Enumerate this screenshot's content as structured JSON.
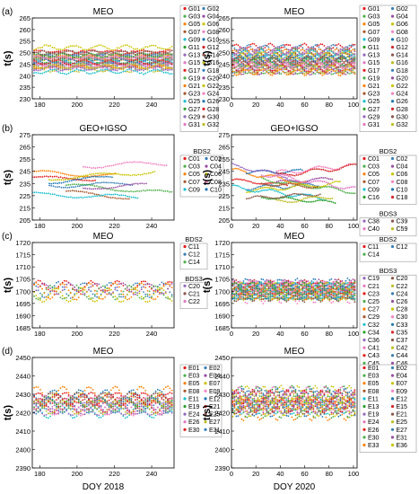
{
  "figure": {
    "ylabel": "t(s)",
    "xlabel_left": "DOY 2018",
    "xlabel_right": "DOY 2020"
  },
  "series_colors": [
    "#e41a1c",
    "#377eb8",
    "#4daf4a",
    "#984ea3",
    "#ff7f00",
    "#c9c400",
    "#a65628",
    "#f781bf",
    "#17becf",
    "#1f77b4",
    "#2ca02c",
    "#d62728",
    "#9467bd",
    "#8c564b",
    "#e377c2",
    "#bcbd22"
  ],
  "chart_data": [
    {
      "panel_label": "(a)",
      "type": "scatter",
      "title": "MEO",
      "xlim": [
        176,
        252
      ],
      "xticks": [
        180,
        200,
        220,
        240
      ],
      "ylim": [
        230,
        265
      ],
      "yticks": [
        230,
        235,
        240,
        245,
        250,
        255,
        260,
        265
      ],
      "legend_groups": [
        {
          "title": "",
          "entries": [
            "G01",
            "G02",
            "G03",
            "G04",
            "G05",
            "G06",
            "G07",
            "G08",
            "G09",
            "G10",
            "G11",
            "G12",
            "G13",
            "G14",
            "G15",
            "G16",
            "G17",
            "G18",
            "G19",
            "G20",
            "G21",
            "G22",
            "G23",
            "G24",
            "G25",
            "G26",
            "G27",
            "G28",
            "G29",
            "G30",
            "G31",
            "G32"
          ]
        }
      ],
      "series_levels": [
        250.5,
        249.5,
        249,
        248.5,
        248,
        247.5,
        247,
        246.5,
        246,
        245.5,
        245,
        244.5,
        244,
        243.5,
        243,
        242.5,
        249.8,
        248.2,
        246.8,
        245.2,
        243.8,
        252.2,
        247.2,
        244.8,
        241.8,
        246.2,
        248.8,
        245.8,
        243.2,
        250,
        247.8,
        244.2
      ],
      "oscillation_amplitude": 1.0,
      "oscillation_period_days": 14
    },
    {
      "panel_label": "",
      "type": "scatter",
      "title": "MEO",
      "xlim": [
        0,
        103
      ],
      "xticks": [
        0,
        20,
        40,
        60,
        80,
        100
      ],
      "ylim": [
        230,
        265
      ],
      "yticks": [
        230,
        235,
        240,
        245,
        250,
        255,
        260,
        265
      ],
      "legend_groups": [
        {
          "title": "",
          "entries": [
            "G01",
            "G02",
            "G03",
            "G04",
            "G05",
            "G06",
            "G07",
            "G08",
            "G09",
            "G10",
            "G11",
            "G12",
            "G13",
            "G14",
            "G15",
            "G16",
            "G17",
            "G18",
            "G19",
            "G20",
            "G21",
            "G22",
            "G23",
            "G24",
            "G25",
            "G26",
            "G27",
            "G28",
            "G29",
            "G30",
            "G31",
            "G32"
          ]
        }
      ],
      "series_levels": [
        252.5,
        251.5,
        250.5,
        250,
        249.5,
        249,
        248.5,
        248,
        247.5,
        247,
        246.5,
        246,
        245.5,
        245,
        244.5,
        244,
        243.5,
        243,
        242.5,
        242,
        241.5,
        248.2,
        246.2,
        244.2,
        249.2,
        247.2,
        245.2,
        243.2,
        250.8,
        246.8,
        244.8,
        242.8
      ],
      "oscillation_amplitude": 2.0,
      "oscillation_period_days": 14
    },
    {
      "panel_label": "(b)",
      "type": "scatter",
      "title": "GEO+IGSO",
      "xlim": [
        176,
        252
      ],
      "xticks": [
        180,
        200,
        220,
        240
      ],
      "ylim": [
        205,
        275
      ],
      "yticks": [
        205,
        215,
        225,
        235,
        245,
        255,
        265,
        275
      ],
      "legend_groups": [
        {
          "title": "BDS2",
          "entries": [
            "C01",
            "C02",
            "C03",
            "C04",
            "C05",
            "C06",
            "C07",
            "C08",
            "C09",
            "C10"
          ]
        }
      ],
      "series_levels": [
        240,
        233,
        236,
        229,
        244,
        238,
        231,
        248,
        226,
        235
      ],
      "series_slopes": [
        -0.05,
        0.03,
        -0.12,
        0.08,
        -0.06,
        0.1,
        -0.15,
        0.05,
        -0.04,
        0.12
      ],
      "oscillation_amplitude": 2.0,
      "oscillation_period_days": 40
    },
    {
      "panel_label": "",
      "type": "scatter",
      "title": "GEO+IGSO",
      "xlim": [
        0,
        103
      ],
      "xticks": [
        0,
        20,
        40,
        60,
        80,
        100
      ],
      "ylim": [
        205,
        275
      ],
      "yticks": [
        205,
        215,
        225,
        235,
        245,
        255,
        265,
        275
      ],
      "legend_groups": [
        {
          "title": "BDS2",
          "entries": [
            "C01",
            "C02",
            "C03",
            "C04",
            "C05",
            "C06",
            "C07",
            "C08",
            "C09",
            "C10",
            "C16",
            "C18"
          ]
        },
        {
          "title": "BDS3",
          "entries": [
            "C38",
            "C39",
            "C40",
            "C59"
          ]
        }
      ],
      "series_levels": [
        238,
        231,
        242,
        234,
        246,
        228,
        236,
        240,
        232,
        244,
        226,
        237,
        250,
        222,
        247,
        216
      ],
      "series_slopes": [
        -0.1,
        0.04,
        -0.14,
        0.06,
        -0.18,
        0.08,
        -0.05,
        0.1,
        -0.12,
        0.02,
        -0.08,
        0.12,
        -0.2,
        0.06,
        -0.16,
        0.1
      ],
      "oscillation_amplitude": 2.0,
      "oscillation_period_days": 30
    },
    {
      "panel_label": "(c)",
      "type": "scatter",
      "title": "MEO",
      "xlim": [
        176,
        252
      ],
      "xticks": [
        180,
        200,
        220,
        240
      ],
      "ylim": [
        1685,
        1720
      ],
      "yticks": [
        1685,
        1690,
        1695,
        1700,
        1705,
        1710,
        1715,
        1720
      ],
      "legend_groups": [
        {
          "title": "BDS2",
          "entries": [
            "C11",
            "C12",
            "C14"
          ]
        },
        {
          "title": "BDS3",
          "entries": [
            "C20",
            "C21",
            "C22"
          ]
        }
      ],
      "series_levels": [
        1702,
        1700.5,
        1699.5,
        1701,
        1700,
        1698.5
      ],
      "oscillation_amplitude": 3.5,
      "oscillation_period_days": 14
    },
    {
      "panel_label": "",
      "type": "scatter",
      "title": "MEO",
      "xlim": [
        0,
        103
      ],
      "xticks": [
        0,
        20,
        40,
        60,
        80,
        100
      ],
      "ylim": [
        1685,
        1720
      ],
      "yticks": [
        1685,
        1690,
        1695,
        1700,
        1705,
        1710,
        1715,
        1720
      ],
      "legend_groups": [
        {
          "title": "BDS2",
          "entries": [
            "C11",
            "C12",
            "C14"
          ]
        },
        {
          "title": "BDS3",
          "entries": [
            "C19",
            "C20",
            "C21",
            "C22",
            "C23",
            "C24",
            "C25",
            "C26",
            "C27",
            "C28",
            "C29",
            "C30",
            "C32",
            "C33",
            "C34",
            "C35",
            "C36",
            "C37",
            "C41",
            "C42",
            "C43",
            "C44",
            "C45",
            "C46"
          ]
        }
      ],
      "series_levels": [
        1701.5,
        1700,
        1699,
        1702,
        1700.5,
        1699.5,
        1701,
        1698.5,
        1700,
        1702.5,
        1699,
        1701.5,
        1700,
        1698,
        1700.8,
        1699.2,
        1701.2,
        1700.2,
        1699.8,
        1702.2,
        1698.8,
        1700.6,
        1699.4,
        1701.8,
        1700.4,
        1699.6,
        1701.4
      ],
      "oscillation_amplitude": 3.5,
      "oscillation_period_days": 14
    },
    {
      "panel_label": "(d)",
      "type": "scatter",
      "title": "MEO",
      "xlim": [
        176,
        252
      ],
      "xticks": [
        180,
        200,
        220,
        240
      ],
      "ylim": [
        2390,
        2450
      ],
      "yticks": [
        2390,
        2400,
        2410,
        2420,
        2430,
        2440,
        2450
      ],
      "legend_groups": [
        {
          "title": "",
          "entries": [
            "E01",
            "E02",
            "E03",
            "E04",
            "E05",
            "E07",
            "E08",
            "E09",
            "E11",
            "E12",
            "E19",
            "E21",
            "E24",
            "E25",
            "E26",
            "E27",
            "E30",
            "E31"
          ]
        }
      ],
      "series_levels": [
        2428,
        2426,
        2424,
        2422,
        2430,
        2427,
        2425,
        2423,
        2421,
        2429,
        2426,
        2424,
        2422,
        2428,
        2425,
        2423,
        2427,
        2424
      ],
      "oscillation_amplitude": 4.5,
      "oscillation_period_days": 14
    },
    {
      "panel_label": "",
      "type": "scatter",
      "title": "MEO",
      "xlim": [
        0,
        103
      ],
      "xticks": [
        0,
        20,
        40,
        60,
        80,
        100
      ],
      "ylim": [
        2390,
        2450
      ],
      "yticks": [
        2390,
        2400,
        2410,
        2420,
        2430,
        2440,
        2450
      ],
      "legend_groups": [
        {
          "title": "",
          "entries": [
            "E01",
            "E02",
            "E03",
            "E04",
            "E05",
            "E07",
            "E08",
            "E09",
            "E11",
            "E12",
            "E13",
            "E15",
            "E19",
            "E21",
            "E24",
            "E25",
            "E26",
            "E27",
            "E30",
            "E31",
            "E33",
            "E36"
          ]
        }
      ],
      "series_levels": [
        2429,
        2427,
        2425,
        2423,
        2421,
        2430,
        2428,
        2426,
        2424,
        2422,
        2431,
        2427,
        2425,
        2423,
        2429,
        2426,
        2424,
        2428,
        2422,
        2427,
        2425,
        2423
      ],
      "oscillation_amplitude": 5.5,
      "oscillation_period_days": 14
    }
  ]
}
